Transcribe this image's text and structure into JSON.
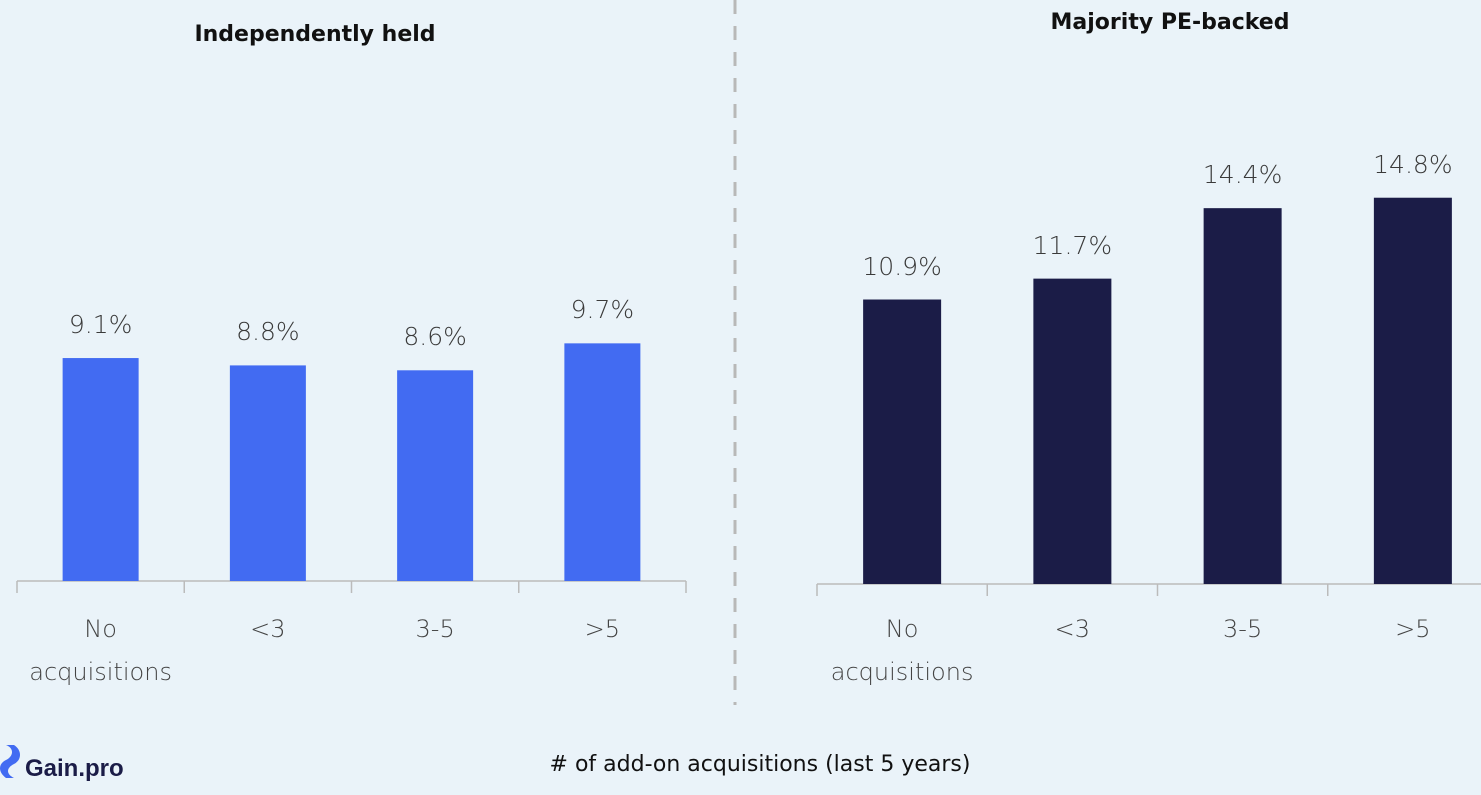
{
  "chart_data": [
    {
      "type": "bar",
      "title": "Independently held",
      "categories": [
        "No acquisitions",
        "<3",
        "3-5",
        ">5"
      ],
      "values": [
        9.1,
        8.8,
        8.6,
        9.7
      ],
      "value_labels": [
        "9.1%",
        "8.8%",
        "8.6%",
        "9.7%"
      ],
      "color": "#426bf2",
      "ylim": [
        0,
        16
      ]
    },
    {
      "type": "bar",
      "title": "Majority PE-backed",
      "categories": [
        "No acquisitions",
        "<3",
        "3-5",
        ">5"
      ],
      "values": [
        10.9,
        11.7,
        14.4,
        14.8
      ],
      "value_labels": [
        "10.9%",
        "11.7%",
        "14.4%",
        "14.8%"
      ],
      "color": "#1b1c47",
      "ylim": [
        0,
        16
      ]
    }
  ],
  "x_label": "# of add-on acquisitions (last 5 years)",
  "logo": "Gain.pro"
}
